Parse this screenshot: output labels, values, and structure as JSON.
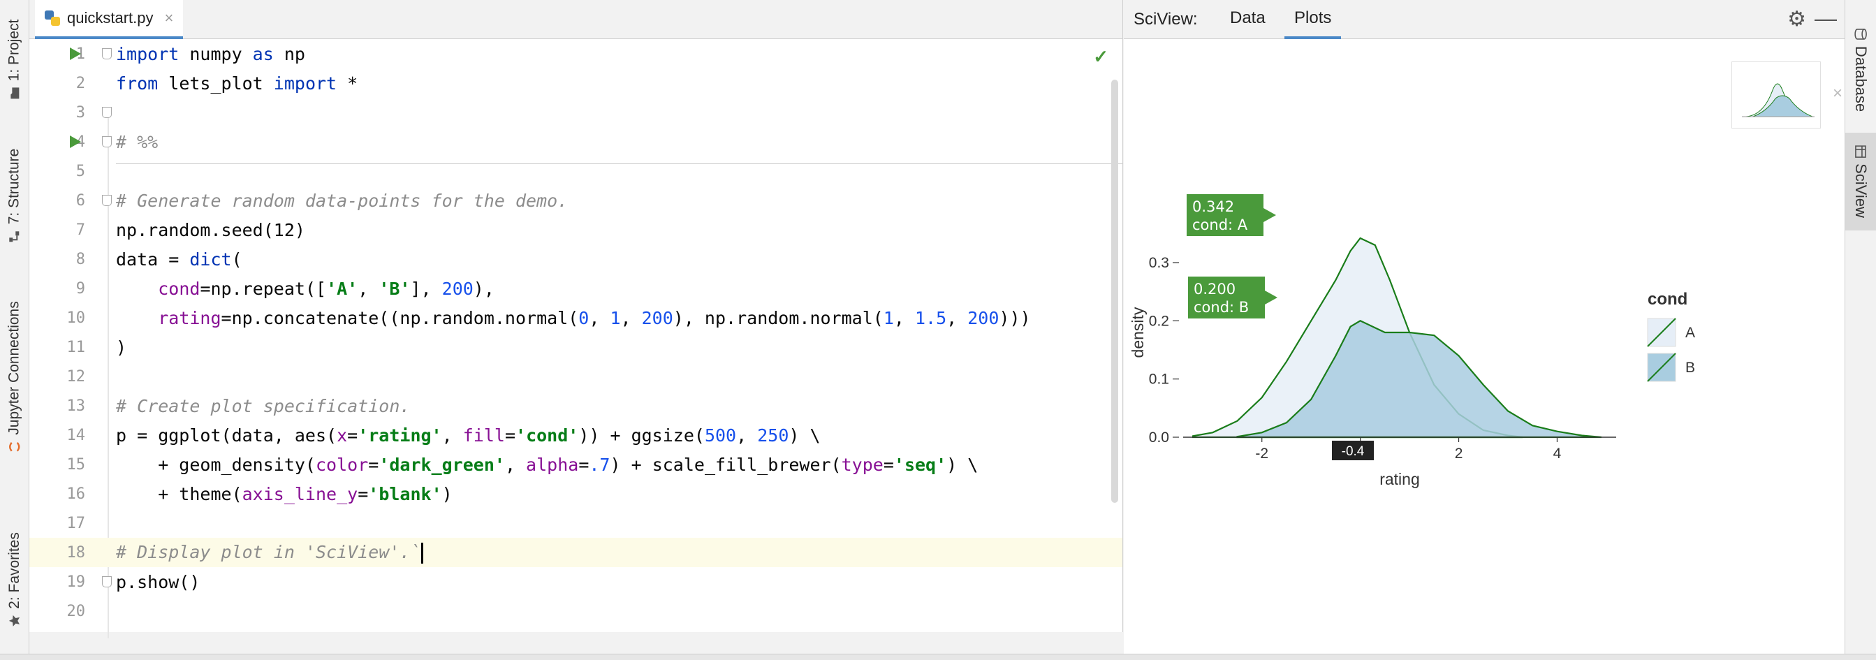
{
  "editor": {
    "file_tab": "quickstart.py",
    "close_glyph": "×",
    "check_glyph": "✓",
    "lines": [
      {
        "n": "1",
        "run": true,
        "fold": true,
        "html": "<span class='kw'>import</span> numpy <span class='kw'>as</span> np"
      },
      {
        "n": "2",
        "run": false,
        "fold": false,
        "html": "<span class='kw'>from</span> lets_plot <span class='kw'>import</span> *"
      },
      {
        "n": "3",
        "run": false,
        "fold": true,
        "html": ""
      },
      {
        "n": "4",
        "run": true,
        "fold": true,
        "html": "<span class='cm'># %%</span>"
      },
      {
        "n": "5",
        "run": false,
        "fold": false,
        "html": ""
      },
      {
        "n": "6",
        "run": false,
        "fold": true,
        "html": "<span class='cm'># Generate random data-points for the demo.</span>"
      },
      {
        "n": "7",
        "run": false,
        "fold": false,
        "html": "np.random.seed(12)"
      },
      {
        "n": "8",
        "run": false,
        "fold": false,
        "html": "data = <span class='kw'>dict</span>("
      },
      {
        "n": "9",
        "run": false,
        "fold": false,
        "html": "    <span class='kwarg'>cond</span>=np.repeat([<span class='str'>'A'</span>, <span class='str'>'B'</span>], <span class='num'>200</span>),"
      },
      {
        "n": "10",
        "run": false,
        "fold": false,
        "html": "    <span class='kwarg'>rating</span>=np.concatenate((np.random.normal(<span class='num'>0</span>, <span class='num'>1</span>, <span class='num'>200</span>), np.random.normal(<span class='num'>1</span>, <span class='num'>1.5</span>, <span class='num'>200</span>)))"
      },
      {
        "n": "11",
        "run": false,
        "fold": false,
        "html": ")"
      },
      {
        "n": "12",
        "run": false,
        "fold": false,
        "html": ""
      },
      {
        "n": "13",
        "run": false,
        "fold": false,
        "html": "<span class='cm'># Create plot specification.</span>"
      },
      {
        "n": "14",
        "run": false,
        "fold": false,
        "html": "p = ggplot(data, aes(<span class='kwarg'>x</span>=<span class='str'>'rating'</span>, <span class='kwarg'>fill</span>=<span class='str'>'cond'</span>)) + ggsize(<span class='num'>500</span>, <span class='num'>250</span>) \\"
      },
      {
        "n": "15",
        "run": false,
        "fold": false,
        "html": "    + geom_density(<span class='kwarg'>color</span>=<span class='str'>'dark_green'</span>, <span class='kwarg'>alpha</span>=<span class='num'>.7</span>) + scale_fill_brewer(<span class='kwarg'>type</span>=<span class='str'>'seq'</span>) \\"
      },
      {
        "n": "16",
        "run": false,
        "fold": false,
        "html": "    + theme(<span class='kwarg'>axis_line_y</span>=<span class='str'>'blank'</span>)"
      },
      {
        "n": "17",
        "run": false,
        "fold": false,
        "html": ""
      },
      {
        "n": "18",
        "run": false,
        "fold": false,
        "hl": true,
        "html": "<span class='cm'># Display plot in 'SciView'.`</span><span class='caret'></span>"
      },
      {
        "n": "19",
        "run": false,
        "fold": true,
        "html": "p.show()"
      },
      {
        "n": "20",
        "run": false,
        "fold": false,
        "html": ""
      }
    ]
  },
  "left_tabs": [
    {
      "label": "1: Project",
      "icon": "folder-icon"
    },
    {
      "label": "7: Structure",
      "icon": "structure-icon"
    },
    {
      "label": "Jupyter Connections",
      "icon": "jupyter-icon"
    },
    {
      "label": "2: Favorites",
      "icon": "star-icon"
    }
  ],
  "right_tabs": [
    {
      "label": "Database",
      "icon": "database-icon"
    },
    {
      "label": "SciView",
      "icon": "sciview-icon"
    }
  ],
  "sciview": {
    "title": "SciView:",
    "tabs": [
      "Data",
      "Plots"
    ],
    "active_tab": "Plots",
    "thumb_close": "×"
  },
  "chart_data": {
    "type": "area",
    "xlabel": "rating",
    "ylabel": "density",
    "x_ticks": [
      "-2",
      "0",
      "2",
      "4"
    ],
    "y_ticks": [
      "0.0",
      "0.1",
      "0.2",
      "0.3"
    ],
    "xlim": [
      -3.6,
      5.2
    ],
    "ylim": [
      0,
      0.36
    ],
    "legend_title": "cond",
    "legend_position": "right",
    "line_color": "#1a7d1a",
    "series": [
      {
        "name": "A",
        "fill": "#e6eef7",
        "x": [
          -3.4,
          -3.0,
          -2.5,
          -2.0,
          -1.5,
          -1.0,
          -0.5,
          -0.2,
          0.0,
          0.3,
          0.6,
          1.0,
          1.5,
          2.0,
          2.5,
          3.0,
          3.3
        ],
        "y": [
          0.002,
          0.008,
          0.028,
          0.068,
          0.13,
          0.2,
          0.27,
          0.32,
          0.342,
          0.33,
          0.27,
          0.18,
          0.09,
          0.04,
          0.012,
          0.003,
          0.0
        ]
      },
      {
        "name": "B",
        "fill": "#a9cde0",
        "x": [
          -2.5,
          -2.0,
          -1.5,
          -1.0,
          -0.5,
          -0.2,
          0.0,
          0.5,
          1.0,
          1.5,
          2.0,
          2.5,
          3.0,
          3.5,
          4.0,
          4.5,
          4.9
        ],
        "y": [
          0.001,
          0.008,
          0.025,
          0.065,
          0.14,
          0.19,
          0.2,
          0.18,
          0.18,
          0.175,
          0.14,
          0.09,
          0.045,
          0.02,
          0.01,
          0.003,
          0.0
        ]
      }
    ],
    "tooltips": [
      {
        "value": "0.342",
        "label": "cond: A",
        "x": 0.0,
        "y": 0.342
      },
      {
        "value": "0.200",
        "label": "cond: B",
        "x": 0.0,
        "y": 0.2
      }
    ],
    "x_cursor_label": "-0.4"
  }
}
